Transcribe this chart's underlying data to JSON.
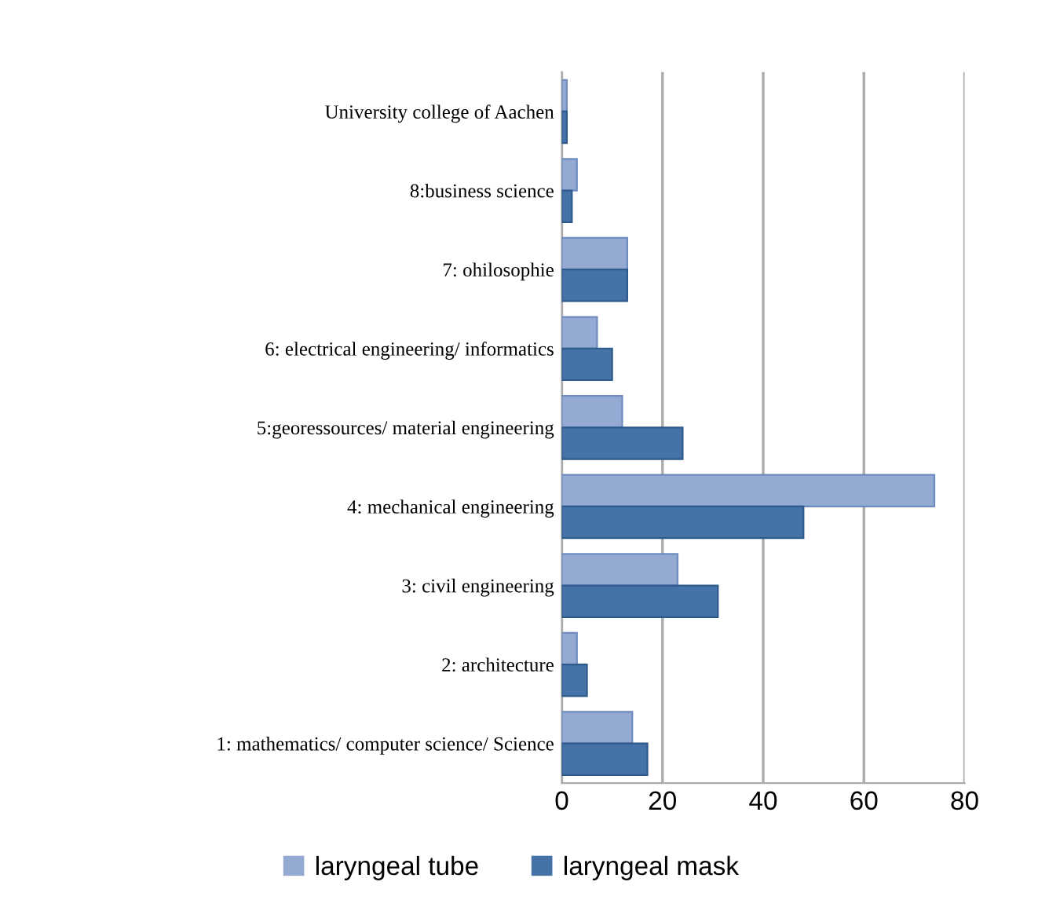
{
  "chart_data": {
    "type": "bar",
    "orientation": "horizontal",
    "categories": [
      "University college of Aachen",
      "8:business science",
      "7: ohilosophie",
      "6: electrical engineering/ informatics",
      "5:georessources/ material engineering",
      "4: mechanical engineering",
      "3: civil engineering",
      "2: architecture",
      "1: mathematics/ computer science/ Science"
    ],
    "series": [
      {
        "name": "laryngeal tube",
        "color": "#95aad3",
        "values": [
          1,
          3,
          13,
          7,
          12,
          74,
          23,
          3,
          14
        ]
      },
      {
        "name": "laryngeal mask",
        "color": "#4572a7",
        "values": [
          1,
          2,
          13,
          10,
          24,
          48,
          31,
          5,
          17
        ]
      }
    ],
    "xlim": [
      0,
      80
    ],
    "xticks": [
      0,
      20,
      40,
      60,
      80
    ],
    "grid": "x",
    "legend": "bottom"
  }
}
